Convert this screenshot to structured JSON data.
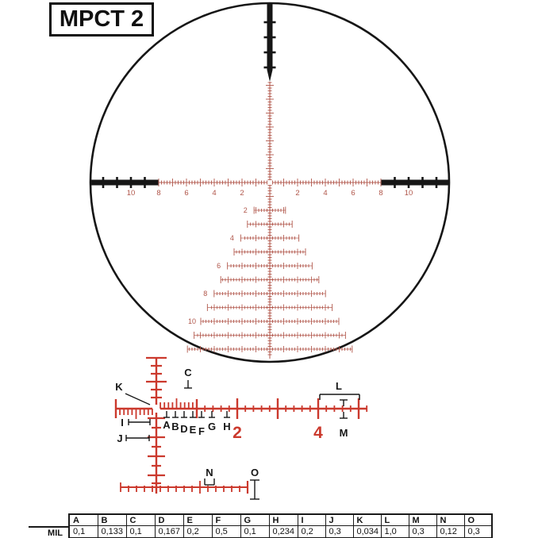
{
  "title": "MPCT 2",
  "colors": {
    "fine_red": "#b0564a",
    "bright_red": "#cb392d",
    "black": "#161616"
  },
  "main_reticle": {
    "horizontal_numbers": [
      "2",
      "4",
      "6",
      "8",
      "10"
    ],
    "tree_row_labels": [
      "2",
      "4",
      "6",
      "8",
      "10"
    ]
  },
  "detail_view": {
    "mil_numbers": [
      "2",
      "4"
    ],
    "dimension_labels": [
      "A",
      "B",
      "C",
      "D",
      "E",
      "F",
      "G",
      "H",
      "I",
      "J",
      "K",
      "L",
      "M",
      "N",
      "O"
    ]
  },
  "table": {
    "row_label": "MIL",
    "columns": [
      "A",
      "B",
      "C",
      "D",
      "E",
      "F",
      "G",
      "H",
      "I",
      "J",
      "K",
      "L",
      "M",
      "N",
      "O"
    ],
    "mil_values": [
      "0,1",
      "0,133",
      "0,1",
      "0,167",
      "0,2",
      "0,5",
      "0,1",
      "0,234",
      "0,2",
      "0,3",
      "0,034",
      "1,0",
      "0,3",
      "0,12",
      "0,3"
    ]
  }
}
